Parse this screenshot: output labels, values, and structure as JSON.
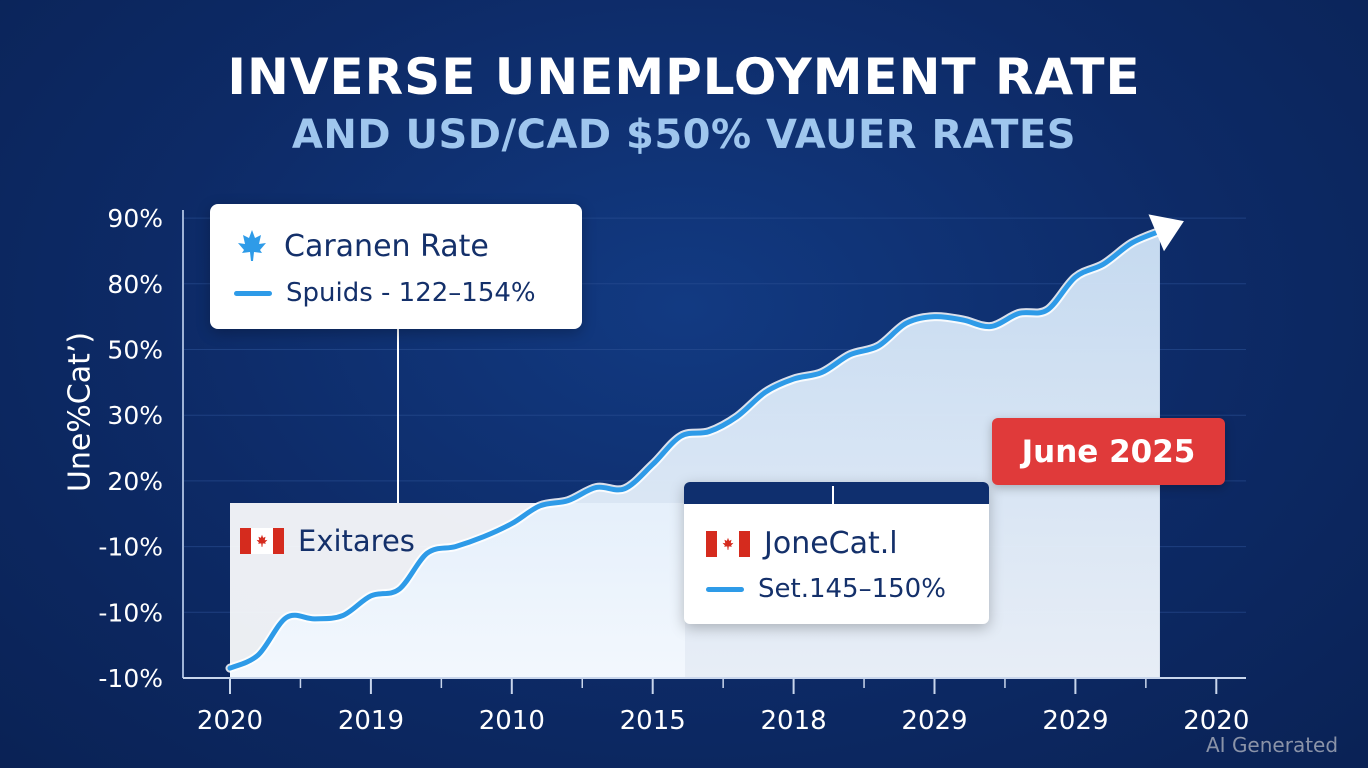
{
  "title": "INVERSE UNEMPLOYMENT RATE",
  "subtitle": "AND USD/CAD $50% VAUER RATES",
  "watermark": "AI Generated",
  "colors": {
    "background": "#0d2a66",
    "line": "#2e9be8",
    "area": "#dbeafa",
    "badge": "#e03a3a",
    "callout_text": "#14306a"
  },
  "callout_rate": {
    "icon": "maple-leaf-icon",
    "title": "Caranen Rate",
    "subtitle": "Spuids - 122–154%"
  },
  "callout_jone": {
    "icon": "canada-flag-icon",
    "title": "JoneCat.l",
    "subtitle": "Set.145–150%"
  },
  "exitares_label": {
    "icon": "canada-flag-icon",
    "text": "Exitares"
  },
  "badge": "June 2025",
  "chart_data": {
    "type": "area",
    "title": "INVERSE UNEMPLOYMENT RATE",
    "subtitle": "AND USD/CAD $50% VAUER RATES",
    "ylabel": "Une%Cat’)",
    "xlabel": "",
    "y_tick_labels": [
      "90%",
      "80%",
      "50%",
      "30%",
      "20%",
      "-10%",
      "-10%",
      "-10%"
    ],
    "x_tick_labels": [
      "2020",
      "2019",
      "2010",
      "2015",
      "2018",
      "2029",
      "2029",
      "2020"
    ],
    "grid": true,
    "legend": "none",
    "series": [
      {
        "points": [
          [
            0.0,
            0.15
          ],
          [
            0.2,
            0.35
          ],
          [
            0.4,
            0.92
          ],
          [
            0.6,
            0.9
          ],
          [
            0.8,
            0.95
          ],
          [
            1.0,
            1.25
          ],
          [
            1.2,
            1.35
          ],
          [
            1.4,
            1.9
          ],
          [
            1.6,
            2.0
          ],
          [
            1.8,
            2.15
          ],
          [
            2.0,
            2.35
          ],
          [
            2.2,
            2.62
          ],
          [
            2.4,
            2.7
          ],
          [
            2.6,
            2.9
          ],
          [
            2.8,
            2.88
          ],
          [
            3.0,
            3.25
          ],
          [
            3.2,
            3.68
          ],
          [
            3.4,
            3.75
          ],
          [
            3.6,
            3.98
          ],
          [
            3.8,
            4.35
          ],
          [
            4.0,
            4.55
          ],
          [
            4.2,
            4.65
          ],
          [
            4.4,
            4.92
          ],
          [
            4.6,
            5.05
          ],
          [
            4.8,
            5.4
          ],
          [
            5.0,
            5.5
          ],
          [
            5.2,
            5.45
          ],
          [
            5.4,
            5.35
          ],
          [
            5.6,
            5.55
          ],
          [
            5.8,
            5.6
          ],
          [
            6.0,
            6.1
          ],
          [
            6.2,
            6.3
          ],
          [
            6.4,
            6.62
          ],
          [
            6.6,
            6.8
          ]
        ]
      }
    ]
  }
}
